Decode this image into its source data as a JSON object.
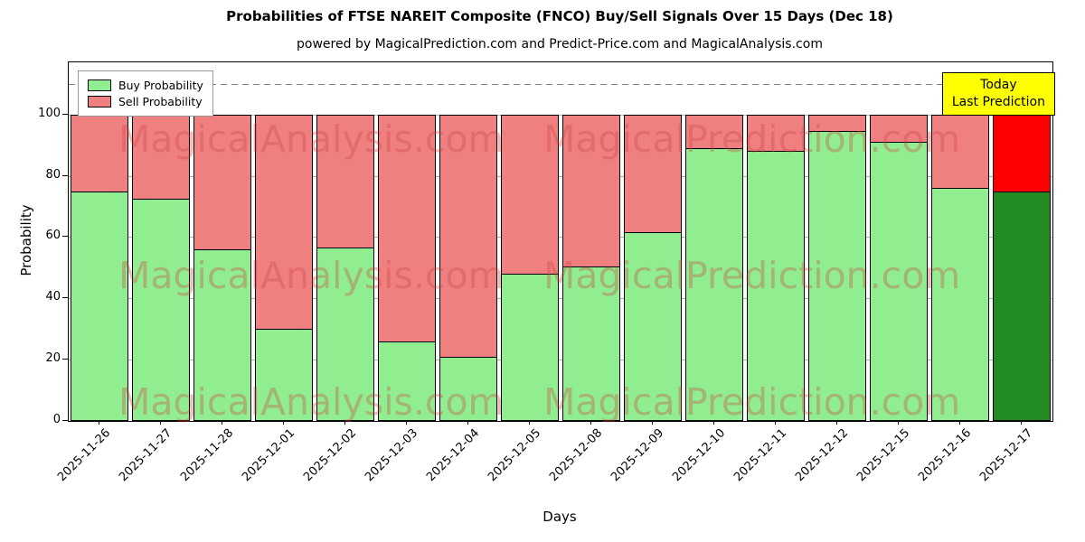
{
  "title": "Probabilities of FTSE NAREIT Composite (FNCO) Buy/Sell Signals Over 15 Days (Dec 18)",
  "subtitle": "powered by MagicalPrediction.com and Predict-Price.com and MagicalAnalysis.com",
  "annotation": {
    "line1": "Today",
    "line2": "Last Prediction",
    "bg_color": "#ffff00"
  },
  "legend": [
    {
      "label": "Buy Probability",
      "color": "#90EE90"
    },
    {
      "label": "Sell Probability",
      "color": "#F08080"
    }
  ],
  "watermarks": [
    "MagicalAnalysis.com",
    "MagicalPrediction.com"
  ],
  "chart_data": {
    "type": "bar",
    "stacked": true,
    "title": "Probabilities of FTSE NAREIT Composite (FNCO) Buy/Sell Signals Over 15 Days (Dec 18)",
    "xlabel": "Days",
    "ylabel": "Probability",
    "categories": [
      "2025-11-26",
      "2025-11-27",
      "2025-11-28",
      "2025-12-01",
      "2025-12-02",
      "2025-12-03",
      "2025-12-04",
      "2025-12-05",
      "2025-12-08",
      "2025-12-09",
      "2025-12-10",
      "2025-12-11",
      "2025-12-12",
      "2025-12-15",
      "2025-12-16",
      "2025-12-17"
    ],
    "series": [
      {
        "name": "Buy Probability",
        "color_normal": "#90EE90",
        "color_today": "#228B22",
        "values": [
          75,
          72.5,
          56,
          30,
          56.5,
          26,
          21,
          48,
          50.5,
          61.5,
          89,
          88,
          94.5,
          91,
          76,
          75
        ]
      },
      {
        "name": "Sell Probability",
        "color_normal": "#F08080",
        "color_today": "#FF0000",
        "values": [
          25,
          27.5,
          44,
          70,
          43.5,
          74,
          79,
          52,
          49.5,
          38.5,
          11,
          12,
          5.5,
          9,
          24,
          25
        ]
      }
    ],
    "yticks": [
      0,
      20,
      40,
      60,
      80,
      100
    ],
    "ylim": [
      0,
      117
    ],
    "dashed_line_y": 110,
    "grid": true,
    "legend_position": "upper left",
    "today_index": 15
  }
}
